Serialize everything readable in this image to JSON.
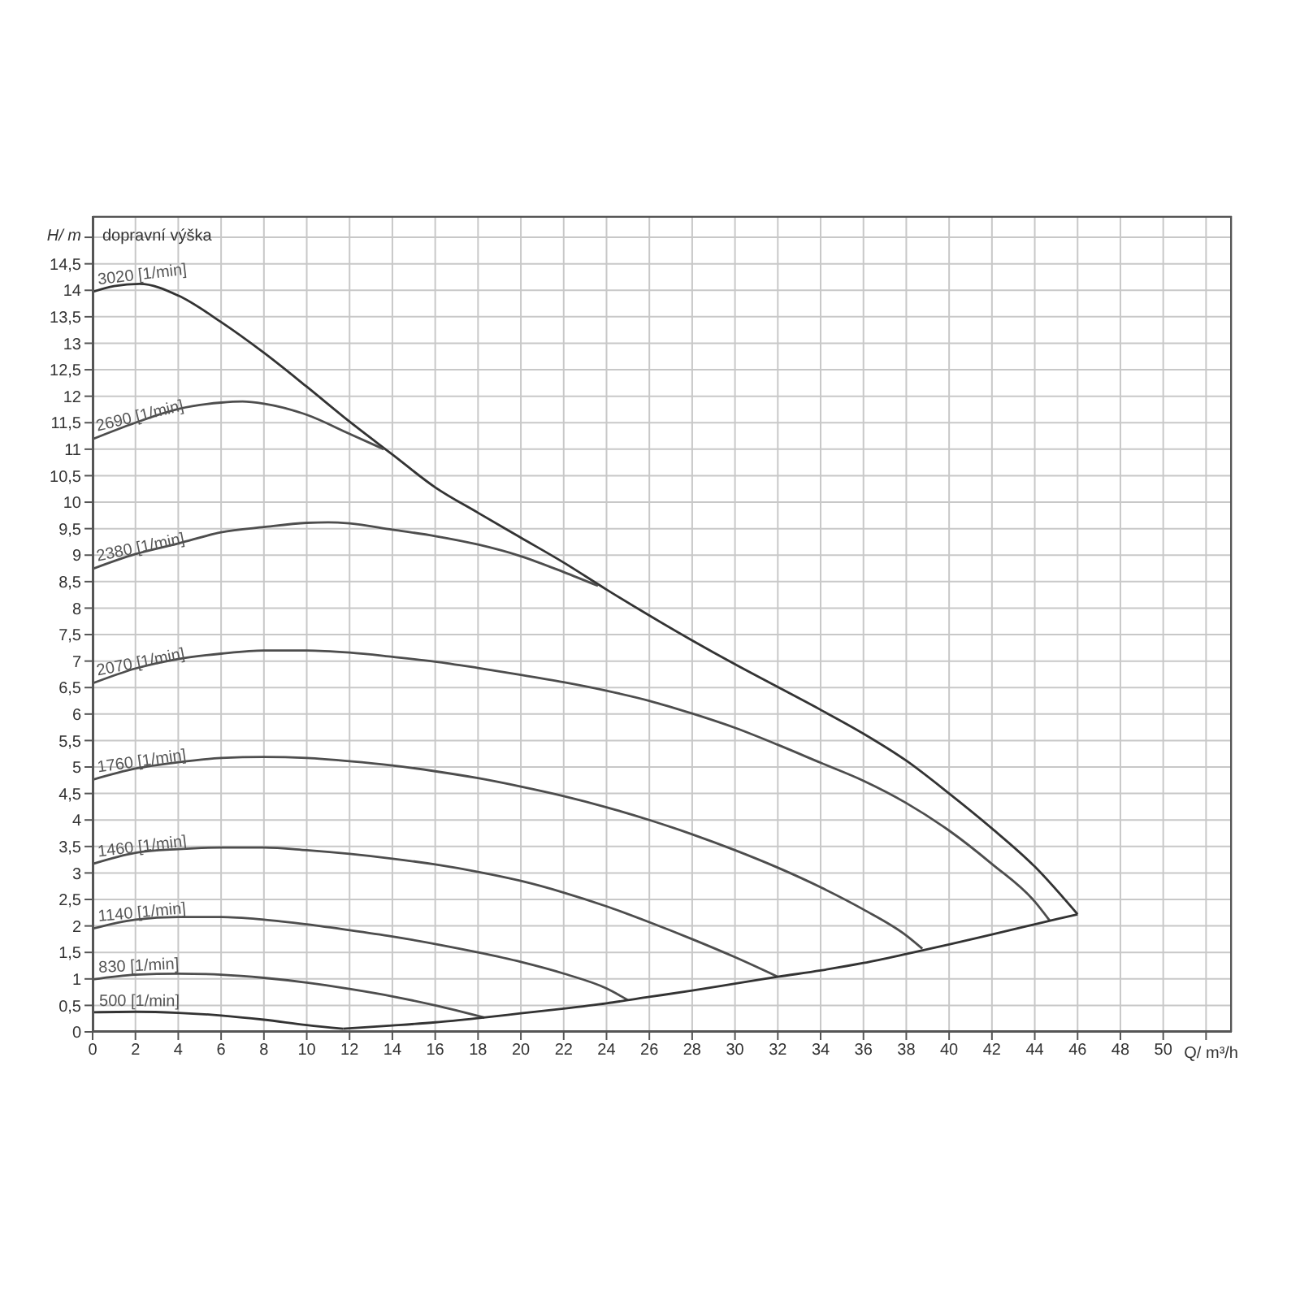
{
  "chart_data": {
    "type": "line",
    "ylabel": "H/ m",
    "xlabel": "Q/ m³/h",
    "annotations": [
      "dopravní výška"
    ],
    "xlim": [
      0,
      53.2
    ],
    "ylim": [
      0,
      15.4
    ],
    "xticks": [
      0,
      2,
      4,
      6,
      8,
      10,
      12,
      14,
      16,
      18,
      20,
      22,
      24,
      26,
      28,
      30,
      32,
      34,
      36,
      38,
      40,
      42,
      44,
      46,
      48,
      50,
      {
        "value": 52,
        "label": null
      }
    ],
    "yticks": [
      0,
      {
        "value": 0.5,
        "label": "0,5"
      },
      1,
      {
        "value": 1.5,
        "label": "1,5"
      },
      2,
      {
        "value": 2.5,
        "label": "2,5"
      },
      3,
      {
        "value": 3.5,
        "label": "3,5"
      },
      4,
      {
        "value": 4.5,
        "label": "4,5"
      },
      5,
      {
        "value": 5.5,
        "label": "5,5"
      },
      6,
      {
        "value": 6.5,
        "label": "6,5"
      },
      7,
      {
        "value": 7.5,
        "label": "7,5"
      },
      8,
      {
        "value": 8.5,
        "label": "8,5"
      },
      9,
      {
        "value": 9.5,
        "label": "9,5"
      },
      10,
      {
        "value": 10.5,
        "label": "10,5"
      },
      11,
      {
        "value": 11.5,
        "label": "11,5"
      },
      12,
      {
        "value": 12.5,
        "label": "12,5"
      },
      13,
      {
        "value": 13.5,
        "label": "13,5"
      },
      14,
      {
        "value": 14.5,
        "label": "14,5"
      },
      {
        "value": 15,
        "label": null
      }
    ],
    "grid": true,
    "marker": "none",
    "line_style": "solid",
    "series": [
      {
        "name": "3020 [1/min]",
        "color": "#333333",
        "x": [
          0,
          1,
          2.2,
          4,
          6,
          8,
          10,
          12,
          14,
          16,
          18,
          20,
          22,
          24,
          26,
          28,
          30,
          32,
          34,
          36,
          38,
          40,
          42,
          44,
          46
        ],
        "values": [
          13.97,
          14.08,
          14.12,
          13.9,
          13.4,
          12.82,
          12.18,
          11.52,
          10.9,
          10.28,
          9.8,
          9.33,
          8.86,
          8.35,
          7.86,
          7.39,
          6.94,
          6.51,
          6.08,
          5.63,
          5.12,
          4.5,
          3.84,
          3.12,
          2.22
        ]
      },
      {
        "name": "2690 [1/min]",
        "color": "#4d4d4d",
        "x": [
          0,
          2,
          4,
          6,
          7,
          8,
          10,
          12,
          13.6
        ],
        "values": [
          11.19,
          11.5,
          11.76,
          11.88,
          11.9,
          11.86,
          11.65,
          11.29,
          11.0
        ]
      },
      {
        "name": "2380 [1/min]",
        "color": "#4d4d4d",
        "x": [
          0,
          2,
          4,
          6,
          8,
          10,
          11,
          12,
          14,
          16,
          18,
          20,
          22,
          23.6
        ],
        "values": [
          8.74,
          9.02,
          9.22,
          9.43,
          9.53,
          9.61,
          9.62,
          9.6,
          9.48,
          9.36,
          9.2,
          8.98,
          8.68,
          8.42
        ]
      },
      {
        "name": "2070 [1/min]",
        "color": "#4d4d4d",
        "x": [
          0,
          2,
          4,
          6,
          8,
          10,
          12,
          14,
          16,
          18,
          20,
          22,
          24,
          26,
          28,
          30,
          32,
          34,
          36,
          38,
          40,
          42,
          44,
          44.7
        ],
        "values": [
          6.58,
          6.86,
          7.04,
          7.14,
          7.2,
          7.2,
          7.16,
          7.08,
          6.99,
          6.87,
          6.74,
          6.6,
          6.44,
          6.25,
          6.01,
          5.74,
          5.42,
          5.08,
          4.74,
          4.32,
          3.8,
          3.17,
          2.46,
          2.1
        ]
      },
      {
        "name": "1760 [1/min]",
        "color": "#4d4d4d",
        "x": [
          0,
          2,
          4,
          6,
          8,
          10,
          12,
          14,
          16,
          18,
          20,
          22,
          24,
          26,
          28,
          30,
          32,
          34,
          36,
          38,
          38.75
        ],
        "values": [
          4.76,
          4.97,
          5.09,
          5.17,
          5.19,
          5.17,
          5.11,
          5.03,
          4.92,
          4.79,
          4.63,
          4.45,
          4.24,
          4.0,
          3.73,
          3.43,
          3.1,
          2.73,
          2.31,
          1.82,
          1.57
        ]
      },
      {
        "name": "1460 [1/min]",
        "color": "#4d4d4d",
        "x": [
          0,
          2,
          4,
          6,
          8,
          10,
          12,
          14,
          16,
          18,
          20,
          22,
          24,
          26,
          28,
          30,
          32
        ],
        "values": [
          3.17,
          3.38,
          3.45,
          3.48,
          3.48,
          3.43,
          3.36,
          3.27,
          3.16,
          3.02,
          2.85,
          2.63,
          2.37,
          2.07,
          1.75,
          1.41,
          1.04
        ]
      },
      {
        "name": "1140 [1/min]",
        "color": "#4d4d4d",
        "x": [
          0,
          2,
          4,
          6,
          8,
          10,
          12,
          14,
          16,
          18,
          20,
          22,
          24,
          25
        ],
        "values": [
          1.95,
          2.12,
          2.17,
          2.17,
          2.12,
          2.03,
          1.92,
          1.8,
          1.66,
          1.5,
          1.32,
          1.1,
          0.82,
          0.6
        ]
      },
      {
        "name": "830 [1/min]",
        "color": "#4d4d4d",
        "x": [
          0,
          2,
          4,
          6,
          8,
          10,
          12,
          14,
          16,
          18.3
        ],
        "values": [
          0.99,
          1.08,
          1.1,
          1.08,
          1.02,
          0.93,
          0.81,
          0.67,
          0.5,
          0.27
        ]
      },
      {
        "name": "500 [1/min]",
        "color": "#333333",
        "x": [
          0,
          2,
          4,
          6,
          8,
          10,
          11.7
        ],
        "values": [
          0.37,
          0.38,
          0.36,
          0.31,
          0.23,
          0.13,
          0.06
        ]
      },
      {
        "color": "#333333",
        "x": [
          11.7,
          14,
          16,
          18,
          20,
          22,
          24,
          26,
          28,
          30,
          32,
          34,
          36,
          38,
          40,
          42,
          44,
          46
        ],
        "values": [
          0.06,
          0.12,
          0.18,
          0.26,
          0.35,
          0.44,
          0.54,
          0.66,
          0.78,
          0.91,
          1.04,
          1.16,
          1.3,
          1.47,
          1.65,
          1.84,
          2.03,
          2.22
        ]
      }
    ]
  }
}
